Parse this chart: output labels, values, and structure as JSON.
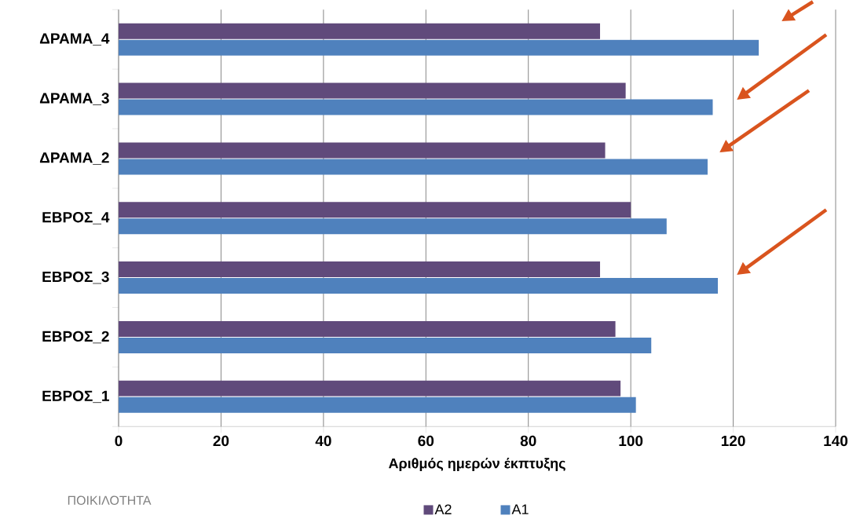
{
  "chart_data": {
    "type": "bar",
    "orientation": "horizontal",
    "xlabel": "Αριθμός ημερών έκπτυξης",
    "categories": [
      "ΔΡΑΜΑ_4",
      "ΔΡΑΜΑ_3",
      "ΔΡΑΜΑ_2",
      "ΕΒΡΟΣ_4",
      "ΕΒΡΟΣ_3",
      "ΕΒΡΟΣ_2",
      "ΕΒΡΟΣ_1"
    ],
    "series": [
      {
        "name": "A1",
        "color": "#4f81bd",
        "values": [
          125,
          116,
          115,
          107,
          117,
          104,
          101
        ]
      },
      {
        "name": "A2",
        "color": "#604a7b",
        "values": [
          94,
          99,
          95,
          100,
          94,
          97,
          98
        ]
      }
    ],
    "xlim": [
      0,
      140
    ],
    "xticks": [
      0,
      20,
      40,
      60,
      80,
      100,
      120,
      140
    ],
    "grid": "x",
    "legend": "bottom",
    "annotations": [
      "ΠΟΙΚΙΛΟΤΗΤΑ"
    ]
  }
}
